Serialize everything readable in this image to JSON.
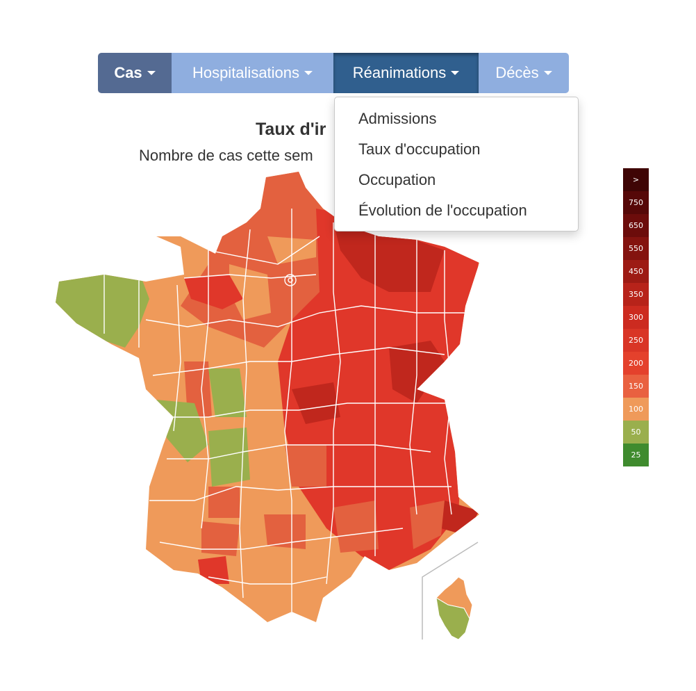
{
  "navbar": {
    "cas_label": "Cas",
    "hosp_label": "Hospitalisations",
    "rea_label": "Réanimations",
    "deces_label": "Décès"
  },
  "dropdown": {
    "items": [
      {
        "label": "Admissions"
      },
      {
        "label": "Taux d'occupation"
      },
      {
        "label": "Occupation"
      },
      {
        "label": "Évolution de l'occupation"
      }
    ]
  },
  "chart": {
    "title": "Taux d'ir",
    "subtitle": "Nombre de cas cette sem"
  },
  "legend": {
    "items": [
      {
        "label": ">",
        "color": "#3f0505"
      },
      {
        "label": "750",
        "color": "#560808"
      },
      {
        "label": "650",
        "color": "#6c0c0b"
      },
      {
        "label": "550",
        "color": "#84130f"
      },
      {
        "label": "450",
        "color": "#9d1b14"
      },
      {
        "label": "350",
        "color": "#b7231a"
      },
      {
        "label": "300",
        "color": "#cc2b20"
      },
      {
        "label": "250",
        "color": "#d93526"
      },
      {
        "label": "200",
        "color": "#e4412c"
      },
      {
        "label": "150",
        "color": "#e96140"
      },
      {
        "label": "100",
        "color": "#ef9a5a"
      },
      {
        "label": "50",
        "color": "#9aaf4d"
      },
      {
        "label": "25",
        "color": "#3f8b2e"
      }
    ]
  },
  "colors": {
    "green": "#9aaf4d",
    "light_orange": "#ef9a5a",
    "orange_red": "#e3613f",
    "red": "#e0372a",
    "dark_red": "#c0271d"
  }
}
